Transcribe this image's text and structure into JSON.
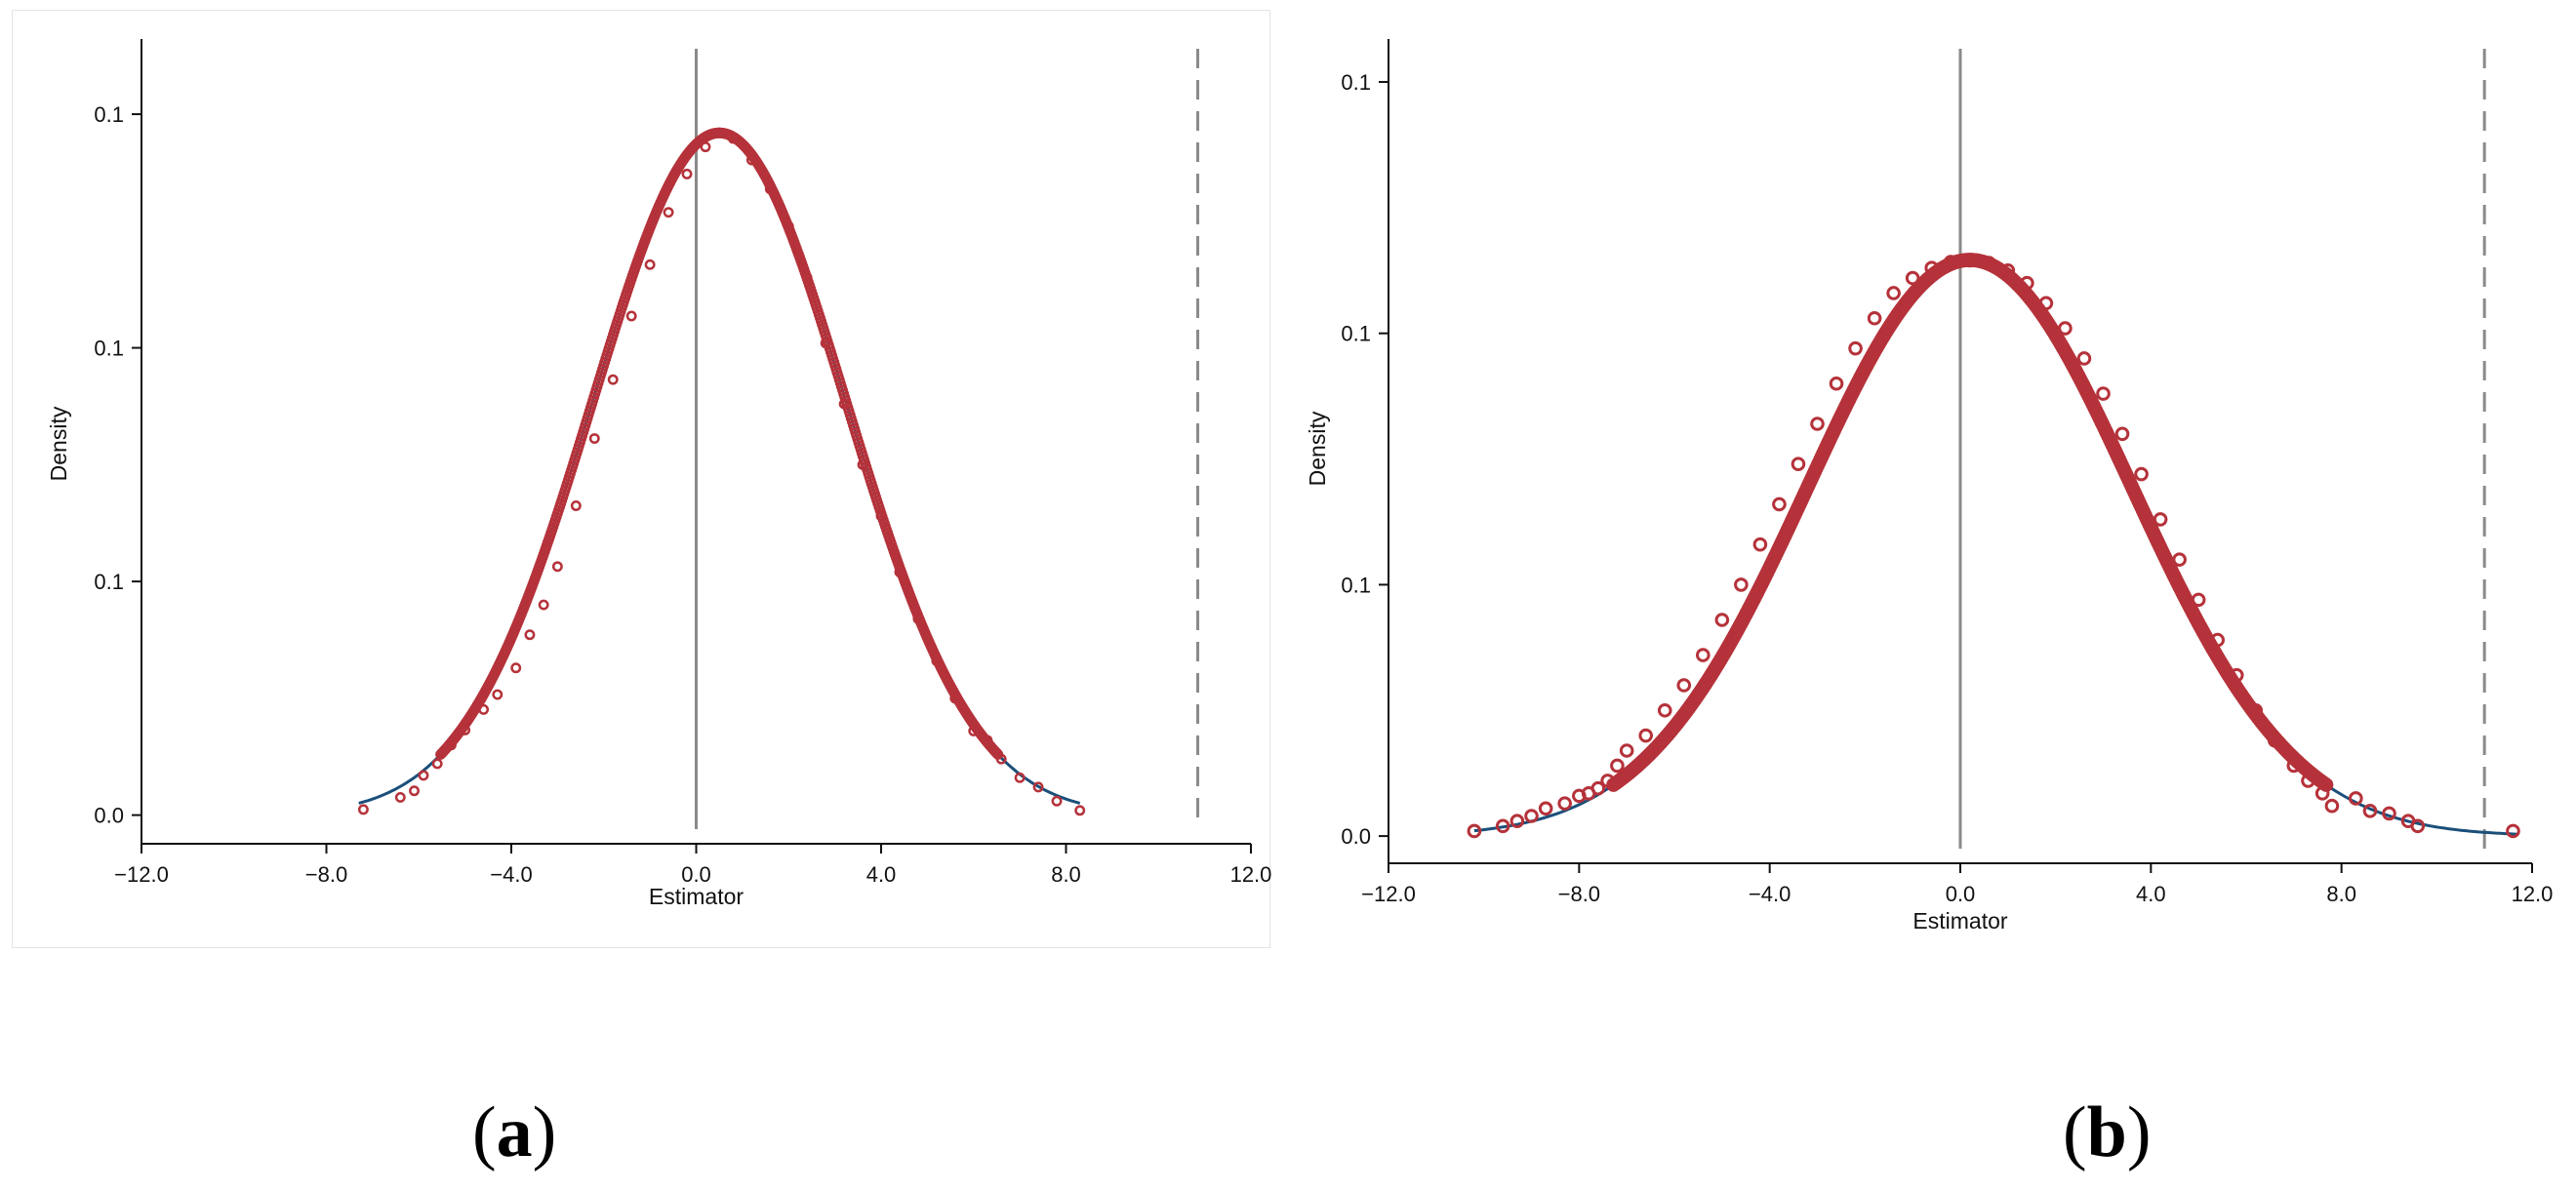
{
  "chart_data": [
    {
      "type": "scatter",
      "panel_label": "a",
      "xlabel": "Estimator",
      "ylabel": "Density",
      "xlim": [
        -12,
        12
      ],
      "ylim": [
        -0.003,
        0.164
      ],
      "x_ticks": [
        -12,
        -8,
        -4,
        0,
        4,
        8,
        12
      ],
      "x_tick_labels": [
        "−12.0",
        "−8.0",
        "−4.0",
        "0.0",
        "4.0",
        "8.0",
        "12.0"
      ],
      "y_ticks": [
        0,
        0.05,
        0.1,
        0.15
      ],
      "y_tick_labels": [
        "0.0",
        "0.1",
        "0.1",
        "0.1"
      ],
      "reference_lines": [
        {
          "x": 0,
          "style": "solid"
        },
        {
          "x": 10.85,
          "style": "dashed"
        }
      ],
      "fitted_curve": {
        "mean": 0.5,
        "sd": 2.74,
        "peak": 0.146,
        "x_range": [
          -7.3,
          8.3
        ]
      },
      "series": [
        {
          "type": "points",
          "values": [
            [
              -7.2,
              0.0012
            ],
            [
              -6.4,
              0.0038
            ],
            [
              -6.1,
              0.0052
            ],
            [
              -5.9,
              0.0085
            ],
            [
              -5.6,
              0.011
            ],
            [
              -5.3,
              0.015
            ],
            [
              -5.0,
              0.0182
            ],
            [
              -4.6,
              0.0226
            ],
            [
              -4.3,
              0.0258
            ],
            [
              -3.9,
              0.0315
            ],
            [
              -3.6,
              0.0386
            ],
            [
              -3.3,
              0.045
            ],
            [
              -3.0,
              0.0532
            ],
            [
              -2.6,
              0.0662
            ],
            [
              -2.2,
              0.0806
            ],
            [
              -1.8,
              0.0932
            ],
            [
              -1.4,
              0.1068
            ],
            [
              -1.0,
              0.1178
            ],
            [
              -0.6,
              0.129
            ],
            [
              -0.2,
              0.1372
            ],
            [
              0.2,
              0.143
            ],
            [
              0.5,
              0.146
            ],
            [
              0.8,
              0.1448
            ],
            [
              1.2,
              0.1402
            ],
            [
              1.6,
              0.134
            ],
            [
              2.0,
              0.126
            ],
            [
              2.4,
              0.115
            ],
            [
              2.8,
              0.101
            ],
            [
              3.2,
              0.088
            ],
            [
              3.6,
              0.075
            ],
            [
              4.0,
              0.064
            ],
            [
              4.4,
              0.052
            ],
            [
              4.8,
              0.042
            ],
            [
              5.2,
              0.033
            ],
            [
              5.6,
              0.025
            ],
            [
              6.0,
              0.018
            ],
            [
              6.3,
              0.016
            ],
            [
              6.6,
              0.012
            ],
            [
              7.0,
              0.008
            ],
            [
              7.4,
              0.006
            ],
            [
              7.8,
              0.003
            ],
            [
              8.3,
              0.001
            ]
          ]
        }
      ]
    },
    {
      "type": "scatter",
      "panel_label": "b",
      "xlabel": "Estimator",
      "ylabel": "Density",
      "xlim": [
        -12,
        12
      ],
      "ylim": [
        -0.0025,
        0.1566
      ],
      "x_ticks": [
        -12,
        -8,
        -4,
        0,
        4,
        8,
        12
      ],
      "x_tick_labels": [
        "−12.0",
        "−8.0",
        "−4.0",
        "0.0",
        "4.0",
        "8.0",
        "12.0"
      ],
      "y_ticks": [
        0,
        0.05,
        0.1,
        0.15
      ],
      "y_tick_labels": [
        "0.0",
        "0.1",
        "0.1",
        "0.1"
      ],
      "reference_lines": [
        {
          "x": 0,
          "style": "solid"
        },
        {
          "x": 11.0,
          "style": "dashed"
        }
      ],
      "fitted_curve": {
        "mean": 0.2,
        "sd": 3.4,
        "peak": 0.1146,
        "x_range": [
          -10.2,
          11.7
        ]
      },
      "series": [
        {
          "type": "points",
          "values": [
            [
              -10.2,
              0.001
            ],
            [
              -9.6,
              0.002
            ],
            [
              -9.3,
              0.003
            ],
            [
              -9.0,
              0.004
            ],
            [
              -8.7,
              0.0055
            ],
            [
              -8.3,
              0.0065
            ],
            [
              -8.0,
              0.008
            ],
            [
              -7.8,
              0.0085
            ],
            [
              -7.6,
              0.0095
            ],
            [
              -7.4,
              0.011
            ],
            [
              -7.2,
              0.014
            ],
            [
              -7.0,
              0.017
            ],
            [
              -6.6,
              0.02
            ],
            [
              -6.2,
              0.025
            ],
            [
              -5.8,
              0.03
            ],
            [
              -5.4,
              0.036
            ],
            [
              -5.0,
              0.043
            ],
            [
              -4.6,
              0.05
            ],
            [
              -4.2,
              0.058
            ],
            [
              -3.8,
              0.066
            ],
            [
              -3.4,
              0.074
            ],
            [
              -3.0,
              0.082
            ],
            [
              -2.6,
              0.09
            ],
            [
              -2.2,
              0.097
            ],
            [
              -1.8,
              0.103
            ],
            [
              -1.4,
              0.108
            ],
            [
              -1.0,
              0.111
            ],
            [
              -0.6,
              0.113
            ],
            [
              -0.2,
              0.1142
            ],
            [
              0.2,
              0.1145
            ],
            [
              0.6,
              0.114
            ],
            [
              1.0,
              0.1125
            ],
            [
              1.4,
              0.11
            ],
            [
              1.8,
              0.106
            ],
            [
              2.2,
              0.101
            ],
            [
              2.6,
              0.095
            ],
            [
              3.0,
              0.088
            ],
            [
              3.4,
              0.08
            ],
            [
              3.8,
              0.072
            ],
            [
              4.2,
              0.063
            ],
            [
              4.6,
              0.055
            ],
            [
              5.0,
              0.047
            ],
            [
              5.4,
              0.039
            ],
            [
              5.8,
              0.032
            ],
            [
              6.2,
              0.025
            ],
            [
              6.6,
              0.019
            ],
            [
              7.0,
              0.014
            ],
            [
              7.3,
              0.011
            ],
            [
              7.6,
              0.0085
            ],
            [
              7.8,
              0.006
            ],
            [
              8.3,
              0.0075
            ],
            [
              8.6,
              0.005
            ],
            [
              9.0,
              0.0045
            ],
            [
              9.4,
              0.003
            ],
            [
              9.6,
              0.002
            ],
            [
              11.6,
              0.001
            ]
          ]
        }
      ]
    }
  ]
}
